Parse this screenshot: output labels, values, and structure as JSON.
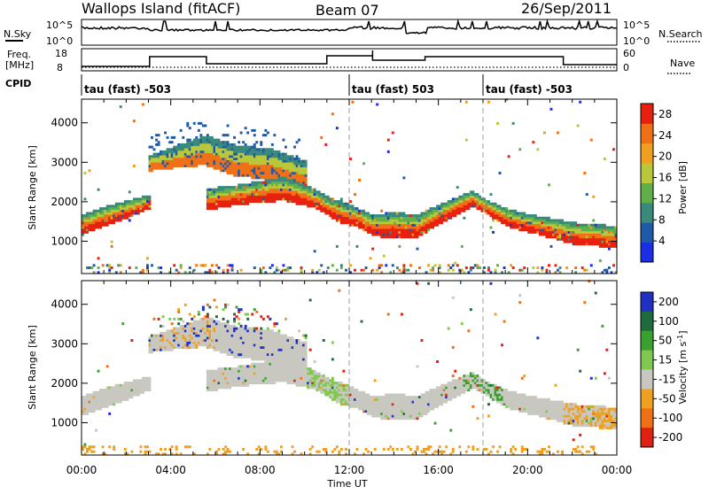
{
  "header": {
    "site": "Wallops Island (fitACF)",
    "beam": "Beam 07",
    "date": "26/Sep/2011"
  },
  "nsky_panel": {
    "left_label": "N.Sky",
    "left_ticks": [
      "10^5",
      "10^0"
    ],
    "right_ticks": [
      "10^5",
      "10^0"
    ],
    "right_label": "N.Search"
  },
  "freq_panel": {
    "left_label_1": "Freq.",
    "left_label_2": "[MHz]",
    "left_ticks": [
      "18",
      "8"
    ],
    "right_ticks": [
      "60",
      "0"
    ],
    "right_label": "Nave"
  },
  "cpid": {
    "label": "CPID",
    "segments": [
      {
        "name": "tau (fast) -503",
        "start_hour": 0
      },
      {
        "name": "tau (fast) 503",
        "start_hour": 12
      },
      {
        "name": "tau (fast) -503",
        "start_hour": 18
      }
    ]
  },
  "chart_data": [
    {
      "type": "heatmap",
      "title": "",
      "ylabel": "Slant Range [km]",
      "xlim_hours": [
        0,
        24
      ],
      "ylim": [
        180,
        4600
      ],
      "yticks": [
        "1000",
        "2000",
        "3000",
        "4000"
      ],
      "colorbar": {
        "label": "Power [dB]",
        "ticks": [
          "4",
          "8",
          "12",
          "16",
          "20",
          "24",
          "28"
        ],
        "range": [
          0,
          30
        ]
      },
      "colors": [
        "#1a2ee6",
        "#1f5aa8",
        "#3a8a7c",
        "#5fb04a",
        "#b8c83a",
        "#f0a020",
        "#f07018",
        "#e82010"
      ]
    },
    {
      "type": "heatmap",
      "title": "",
      "ylabel": "Slant Range [km]",
      "xlabel": "Time UT",
      "xlim_hours": [
        0,
        24
      ],
      "ylim": [
        180,
        4600
      ],
      "yticks": [
        "1000",
        "2000",
        "3000",
        "4000"
      ],
      "xticks": [
        "00:00",
        "04:00",
        "08:00",
        "12:00",
        "16:00",
        "20:00",
        "00:00"
      ],
      "colorbar": {
        "label": "Velocity [m s^-1]",
        "ticks": [
          "200",
          "100",
          "50",
          "15",
          "-15",
          "-50",
          "-100",
          "-200"
        ]
      },
      "colors": [
        "#2030c0",
        "#206a40",
        "#3aa030",
        "#80c850",
        "#c8c8c0",
        "#f0a020",
        "#f07018",
        "#e02010"
      ]
    }
  ],
  "echo_band": {
    "lower_edge_km": [
      [
        0,
        1150
      ],
      [
        1,
        1350
      ],
      [
        2,
        1550
      ],
      [
        3,
        1800
      ],
      [
        5.5,
        1750
      ],
      [
        7,
        1900
      ],
      [
        9,
        2000
      ],
      [
        10.5,
        1800
      ],
      [
        11.5,
        1450
      ],
      [
        12.5,
        1300
      ],
      [
        13,
        1100
      ],
      [
        14,
        1050
      ],
      [
        15,
        1050
      ],
      [
        16,
        1400
      ],
      [
        17,
        1700
      ],
      [
        17.5,
        1850
      ],
      [
        18,
        1700
      ],
      [
        19,
        1350
      ],
      [
        20,
        1200
      ],
      [
        21,
        1050
      ],
      [
        22,
        900
      ],
      [
        23,
        850
      ],
      [
        24,
        800
      ]
    ],
    "upper_edge_km": [
      [
        0,
        1650
      ],
      [
        1,
        1850
      ],
      [
        2,
        2000
      ],
      [
        3,
        2150
      ],
      [
        5.5,
        2300
      ],
      [
        7,
        2400
      ],
      [
        9,
        2600
      ],
      [
        10,
        2400
      ],
      [
        11,
        2100
      ],
      [
        12,
        1900
      ],
      [
        13,
        1650
      ],
      [
        14,
        1700
      ],
      [
        15,
        1650
      ],
      [
        16,
        1900
      ],
      [
        17,
        2150
      ],
      [
        17.5,
        2250
      ],
      [
        18,
        2050
      ],
      [
        19,
        1800
      ],
      [
        20,
        1650
      ],
      [
        21,
        1550
      ],
      [
        22,
        1450
      ],
      [
        23,
        1400
      ],
      [
        24,
        1350
      ]
    ],
    "high_lower_km": [
      [
        3,
        2750
      ],
      [
        4.5,
        2850
      ],
      [
        5.5,
        2900
      ],
      [
        7,
        2600
      ],
      [
        8.5,
        2550
      ],
      [
        10,
        2350
      ]
    ],
    "high_upper_km": [
      [
        3,
        3150
      ],
      [
        4.5,
        3450
      ],
      [
        5.5,
        3650
      ],
      [
        7,
        3400
      ],
      [
        8.5,
        3300
      ],
      [
        10,
        3000
      ]
    ]
  }
}
